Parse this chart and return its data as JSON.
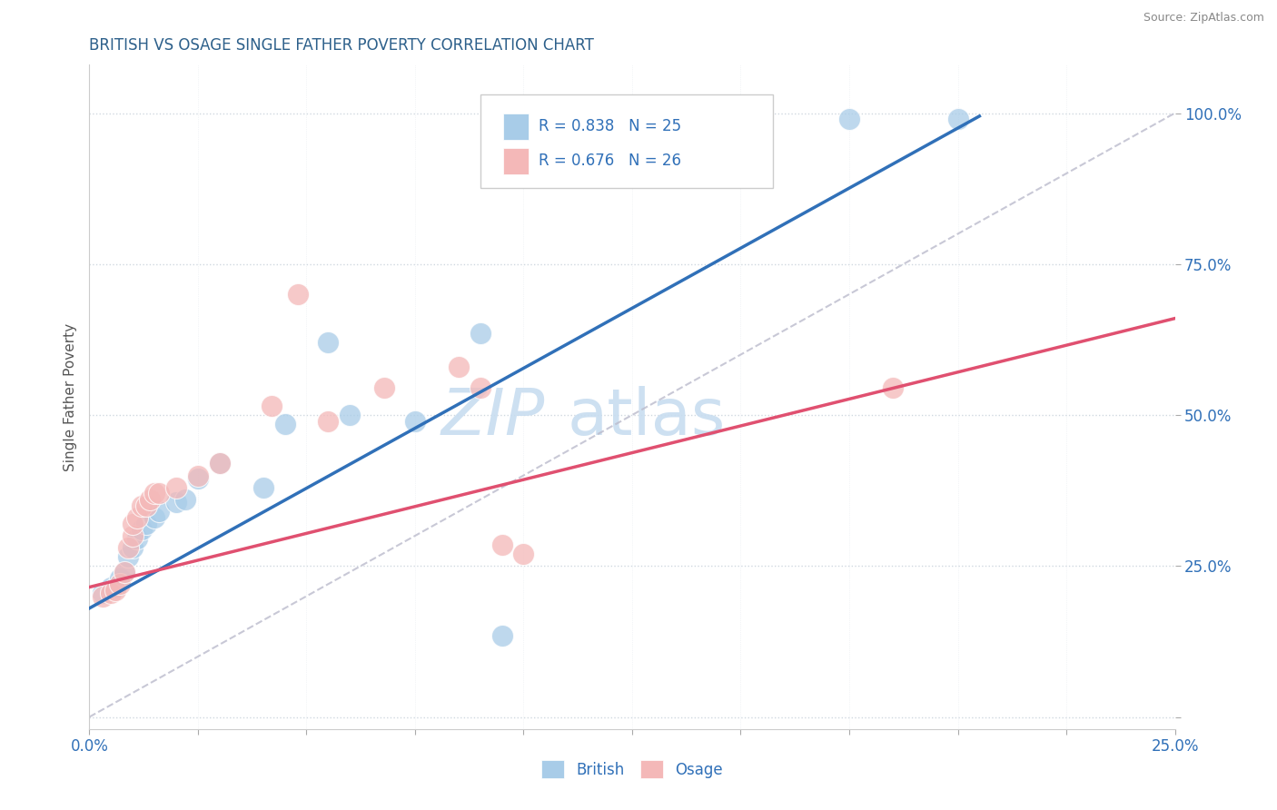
{
  "title": "BRITISH VS OSAGE SINGLE FATHER POVERTY CORRELATION CHART",
  "source_text": "Source: ZipAtlas.com",
  "ylabel": "Single Father Poverty",
  "watermark_zip": "ZIP",
  "watermark_atlas": "atlas",
  "xlim": [
    0.0,
    0.25
  ],
  "ylim": [
    -0.02,
    1.08
  ],
  "ytick_positions": [
    0.0,
    0.25,
    0.5,
    0.75,
    1.0
  ],
  "ytick_labels": [
    "",
    "25.0%",
    "50.0%",
    "75.0%",
    "100.0%"
  ],
  "british_color": "#a8cce8",
  "osage_color": "#f4b8b8",
  "british_line_color": "#3070b8",
  "osage_line_color": "#e05070",
  "legend_R_british": "R = 0.838",
  "legend_N_british": "N = 25",
  "legend_R_osage": "R = 0.676",
  "legend_N_osage": "N = 26",
  "title_color": "#2c5f8a",
  "axis_label_color": "#555555",
  "tick_color": "#3070b8",
  "grid_color": "#d0d8e0",
  "background_color": "#ffffff",
  "british_points": [
    [
      0.003,
      0.205
    ],
    [
      0.005,
      0.215
    ],
    [
      0.006,
      0.215
    ],
    [
      0.007,
      0.23
    ],
    [
      0.008,
      0.24
    ],
    [
      0.009,
      0.265
    ],
    [
      0.01,
      0.28
    ],
    [
      0.011,
      0.295
    ],
    [
      0.012,
      0.31
    ],
    [
      0.013,
      0.32
    ],
    [
      0.015,
      0.33
    ],
    [
      0.016,
      0.34
    ],
    [
      0.02,
      0.355
    ],
    [
      0.022,
      0.36
    ],
    [
      0.025,
      0.395
    ],
    [
      0.03,
      0.42
    ],
    [
      0.04,
      0.38
    ],
    [
      0.045,
      0.485
    ],
    [
      0.055,
      0.62
    ],
    [
      0.06,
      0.5
    ],
    [
      0.075,
      0.49
    ],
    [
      0.09,
      0.635
    ],
    [
      0.095,
      0.135
    ],
    [
      0.175,
      0.99
    ],
    [
      0.2,
      0.99
    ]
  ],
  "osage_points": [
    [
      0.003,
      0.2
    ],
    [
      0.005,
      0.205
    ],
    [
      0.006,
      0.21
    ],
    [
      0.007,
      0.22
    ],
    [
      0.008,
      0.24
    ],
    [
      0.009,
      0.28
    ],
    [
      0.01,
      0.3
    ],
    [
      0.01,
      0.32
    ],
    [
      0.011,
      0.33
    ],
    [
      0.012,
      0.35
    ],
    [
      0.013,
      0.35
    ],
    [
      0.014,
      0.36
    ],
    [
      0.015,
      0.37
    ],
    [
      0.016,
      0.37
    ],
    [
      0.02,
      0.38
    ],
    [
      0.025,
      0.4
    ],
    [
      0.03,
      0.42
    ],
    [
      0.042,
      0.515
    ],
    [
      0.048,
      0.7
    ],
    [
      0.055,
      0.49
    ],
    [
      0.068,
      0.545
    ],
    [
      0.085,
      0.58
    ],
    [
      0.09,
      0.545
    ],
    [
      0.095,
      0.285
    ],
    [
      0.1,
      0.27
    ],
    [
      0.185,
      0.545
    ]
  ],
  "british_regline_x": [
    0.0,
    0.205
  ],
  "british_regline_y": [
    0.18,
    0.995
  ],
  "osage_regline_x": [
    0.0,
    0.25
  ],
  "osage_regline_y": [
    0.215,
    0.66
  ],
  "ref_line_x": [
    0.0,
    0.25
  ],
  "ref_line_y": [
    0.0,
    1.0
  ]
}
